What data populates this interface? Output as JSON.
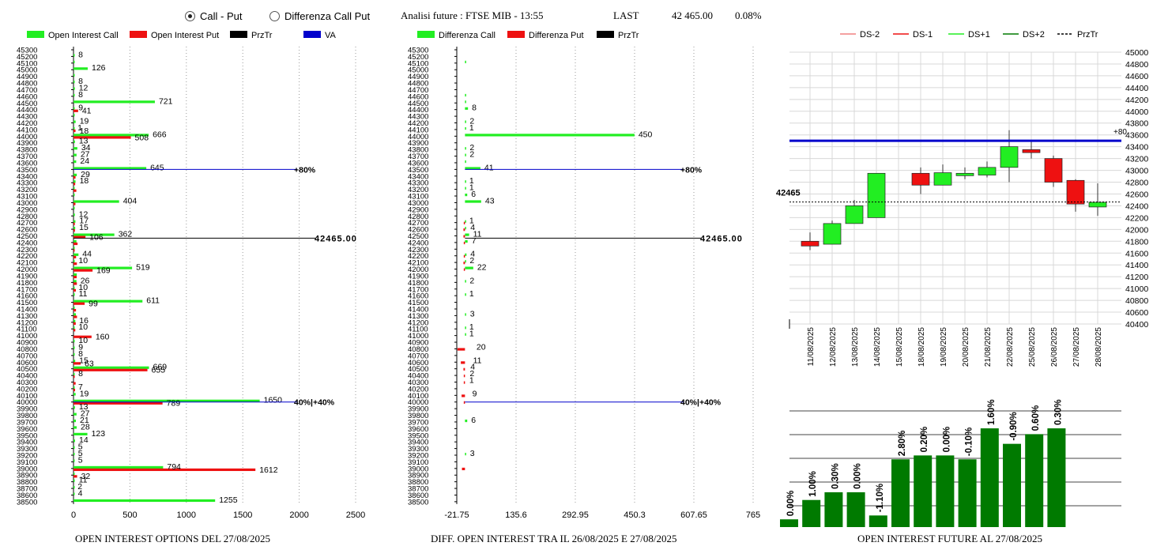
{
  "header": {
    "radio_call_put": "Call - Put",
    "radio_diff": "Differenza Call Put",
    "analysis_label": "Analisi future : FTSE MIB - 13:55",
    "last_label": "LAST",
    "last_value": "42 465.00",
    "last_change": "0.08%"
  },
  "captions": {
    "left": "OPEN INTEREST OPTIONS DEL 27/08/2025",
    "middle": "DIFF. OPEN INTEREST TRA IL 26/08/2025 E 27/08/2025",
    "right": "OPEN INTEREST FUTURE AL 27/08/2025"
  },
  "colors": {
    "green": "#22ee22",
    "red": "#ee1111",
    "blue": "#0000cc",
    "dark_green": "#007a00",
    "light_red": "#f08080"
  },
  "chart_data": [
    {
      "type": "bar",
      "orientation": "horizontal",
      "legend": [
        "Open Interest Call",
        "Open Interest Put",
        "PrzTr",
        "VA"
      ],
      "strikes": [
        45300,
        45200,
        45100,
        45000,
        44900,
        44800,
        44700,
        44600,
        44500,
        44400,
        44300,
        44200,
        44100,
        44000,
        43900,
        43800,
        43700,
        43600,
        43500,
        43400,
        43300,
        43200,
        43100,
        43000,
        42900,
        42800,
        42700,
        42600,
        42500,
        42400,
        42300,
        42200,
        42100,
        42000,
        41900,
        41800,
        41700,
        41600,
        41500,
        41400,
        41300,
        41200,
        41100,
        41000,
        40900,
        40800,
        40700,
        40600,
        40500,
        40400,
        40300,
        40200,
        40100,
        40000,
        39900,
        39800,
        39700,
        39600,
        39500,
        39400,
        39300,
        39200,
        39100,
        39000,
        38900,
        38800,
        38700,
        38600,
        38500
      ],
      "call": [
        0,
        8,
        1,
        126,
        1,
        8,
        12,
        8,
        721,
        9,
        1,
        19,
        1,
        666,
        13,
        34,
        27,
        24,
        645,
        29,
        18,
        5,
        10,
        404,
        3,
        12,
        17,
        15,
        362,
        26,
        5,
        44,
        10,
        519,
        29,
        26,
        10,
        11,
        611,
        2,
        21,
        16,
        10,
        0,
        10,
        9,
        8,
        15,
        669,
        8,
        0,
        7,
        19,
        1650,
        13,
        27,
        21,
        28,
        123,
        14,
        5,
        5,
        5,
        794,
        2,
        11,
        2,
        4,
        1255
      ],
      "put": [
        0,
        0,
        0,
        0,
        0,
        0,
        0,
        0,
        0,
        41,
        0,
        0,
        18,
        508,
        0,
        0,
        0,
        0,
        0,
        18,
        15,
        25,
        0,
        17,
        0,
        0,
        12,
        13,
        106,
        36,
        4,
        23,
        30,
        169,
        28,
        30,
        21,
        0,
        99,
        22,
        31,
        20,
        16,
        160,
        0,
        0,
        0,
        63,
        655,
        9,
        19,
        14,
        0,
        789,
        0,
        0,
        0,
        0,
        0,
        0,
        0,
        0,
        0,
        1612,
        32,
        0,
        0,
        0,
        0
      ],
      "call_labels": {
        "45200": "8",
        "45000": "126",
        "44800": "8",
        "44700": "12",
        "44600": "8",
        "44500": "721",
        "44400": "9",
        "44200": "19",
        "44100": "1",
        "44000": "666",
        "43900": "13",
        "43800": "34",
        "43700": "27",
        "43600": "24",
        "43500": "645",
        "43400": "29",
        "43300": "18",
        "43000": "404",
        "42800": "12",
        "42700": "17",
        "42600": "15",
        "42500": "362",
        "42200": "44",
        "42100": "10",
        "42000": "519",
        "41800": "26",
        "41700": "10",
        "41600": "11",
        "41500": "611",
        "41200": "16",
        "41100": "10",
        "40900": "10",
        "40800": "9",
        "40700": "8",
        "40600": "15",
        "40500": "669",
        "40400": "8",
        "40200": "7",
        "40100": "19",
        "40000": "1650",
        "39900": "13",
        "39800": "27",
        "39700": "21",
        "39600": "28",
        "39500": "123",
        "39400": "14",
        "39300": "5",
        "39200": "5",
        "39100": "5",
        "39000": "794",
        "38800": "11",
        "38700": "2",
        "38600": "4",
        "38500": "1255"
      },
      "put_labels": {
        "44400": "41",
        "44100": "18",
        "44000": "508",
        "42500": "106",
        "42000": "169",
        "41500": "99",
        "41000": "160",
        "40600": "63",
        "40500": "655",
        "40000": "789",
        "39000": "1612",
        "38900": "32"
      },
      "xticks": [
        "0",
        "500",
        "1000",
        "1500",
        "2000",
        "2500"
      ],
      "xlim": [
        0,
        2500
      ],
      "prztr": 42465,
      "prztr_label": "42465.00",
      "va_lines": [
        {
          "strike": 43500,
          "label": "+80%"
        },
        {
          "strike": 40000,
          "label": "40%|+40%"
        }
      ]
    },
    {
      "type": "bar",
      "orientation": "horizontal",
      "legend": [
        "Differenza Call",
        "Differenza Put",
        "PrzTr"
      ],
      "strikes": [
        45300,
        45200,
        45100,
        45000,
        44900,
        44800,
        44700,
        44600,
        44500,
        44400,
        44300,
        44200,
        44100,
        44000,
        43900,
        43800,
        43700,
        43600,
        43500,
        43400,
        43300,
        43200,
        43100,
        43000,
        42900,
        42800,
        42700,
        42600,
        42500,
        42400,
        42300,
        42200,
        42100,
        42000,
        41900,
        41800,
        41700,
        41600,
        41500,
        41400,
        41300,
        41200,
        41100,
        41000,
        40900,
        40800,
        40700,
        40600,
        40500,
        40400,
        40300,
        40200,
        40100,
        40000,
        39900,
        39800,
        39700,
        39600,
        39500,
        39400,
        39300,
        39200,
        39100,
        39000,
        38900,
        38800,
        38700,
        38600,
        38500
      ],
      "call_diff": [
        0,
        0,
        1,
        0,
        0,
        0,
        0,
        1,
        1,
        8,
        0,
        2,
        1,
        450,
        0,
        2,
        2,
        1,
        41,
        0,
        1,
        1,
        6,
        43,
        0,
        0,
        1,
        1,
        11,
        7,
        0,
        4,
        2,
        22,
        0,
        2,
        0,
        1,
        0,
        0,
        3,
        0,
        1,
        1,
        0,
        0,
        0,
        0,
        0,
        0,
        0,
        0,
        0,
        0,
        0,
        0,
        6,
        0,
        0,
        0,
        0,
        3,
        0,
        0,
        0,
        0,
        0,
        0,
        0
      ],
      "put_diff": [
        0,
        0,
        0,
        0,
        0,
        0,
        0,
        0,
        0,
        0,
        0,
        0,
        0,
        0,
        0,
        0,
        0,
        0,
        0,
        0,
        0,
        0,
        0,
        0,
        0,
        0,
        1,
        4,
        4,
        1,
        0,
        1,
        4,
        2,
        0,
        0,
        0,
        0,
        0,
        0,
        0,
        0,
        0,
        0,
        0,
        20,
        0,
        11,
        4,
        2,
        1,
        0,
        9,
        1,
        0,
        0,
        0,
        0,
        0,
        0,
        0,
        0,
        0,
        8,
        0,
        0,
        0,
        0,
        0
      ],
      "labels": {
        "44400": "8",
        "44200": "2",
        "44100": "1",
        "44000": "450",
        "43800": "2",
        "43700": "2",
        "43500": "41",
        "43300": "1",
        "43200": "1",
        "43100": "6",
        "43000": "43",
        "42700": "1",
        "42600": "4",
        "42500": "11",
        "42400": "7",
        "42200": "4",
        "42100": "2",
        "42000": "22",
        "41800": "2",
        "41600": "1",
        "41300": "3",
        "41100": "1",
        "41000": "1",
        "40800": "20",
        "40600": "11",
        "40500": "4",
        "40400": "2",
        "40300": "1",
        "40100": "9",
        "39700": "6",
        "39200": "3"
      },
      "xticks": [
        "-21.75",
        "135.6",
        "292.95",
        "450.3",
        "607.65",
        "765"
      ],
      "xlim": [
        -21.75,
        765
      ],
      "prztr": 42465,
      "prztr_label": "42465.00",
      "va_lines": [
        {
          "strike": 43500,
          "label": "+80%"
        },
        {
          "strike": 40000,
          "label": "40%|+40%"
        }
      ]
    },
    {
      "type": "candlestick",
      "legend": [
        "DS-2",
        "DS-1",
        "DS+1",
        "DS+2",
        "PrzTr"
      ],
      "dates": [
        "11/08/2025",
        "12/08/2025",
        "13/08/2025",
        "14/08/2025",
        "15/08/2025",
        "18/08/2025",
        "19/08/2025",
        "20/08/2025",
        "21/08/2025",
        "22/08/2025",
        "25/08/2025",
        "26/08/2025",
        "27/08/2025",
        "28/08/2025"
      ],
      "ohlc": [
        [
          41800,
          41950,
          41650,
          41720
        ],
        [
          41750,
          42150,
          41750,
          42100
        ],
        [
          42100,
          42500,
          42100,
          42400
        ],
        [
          42200,
          42950,
          42200,
          42950
        ],
        null,
        [
          42950,
          43050,
          42600,
          42750
        ],
        [
          42750,
          43100,
          42750,
          42960
        ],
        [
          42920,
          43050,
          42850,
          42950
        ],
        [
          42920,
          43150,
          42880,
          43050
        ],
        [
          43050,
          43680,
          42800,
          43400
        ],
        [
          43350,
          43500,
          43200,
          43300
        ],
        [
          43200,
          43250,
          42720,
          42800
        ],
        [
          42830,
          42850,
          42300,
          42430
        ],
        [
          42380,
          42780,
          42230,
          42460
        ]
      ],
      "candle_colors": [
        "red",
        "green",
        "green",
        "green",
        null,
        "red",
        "green",
        "green",
        "green",
        "green",
        "red",
        "red",
        "red",
        "green"
      ],
      "ylim": [
        40400,
        45000
      ],
      "yticks": [
        "45000",
        "44800",
        "44600",
        "44400",
        "44200",
        "44000",
        "43800",
        "43600",
        "43400",
        "43200",
        "43000",
        "42800",
        "42600",
        "42400",
        "42200",
        "42000",
        "41800",
        "41600",
        "41400",
        "41200",
        "41000",
        "40800",
        "40600",
        "40400"
      ],
      "blue_line": 43500,
      "blue_label": "+80",
      "prztr": 42465,
      "prztr_label": "42465"
    },
    {
      "type": "bar",
      "values": [
        0.0,
        1.0,
        0.3,
        0.0,
        -1.1,
        2.8,
        0.2,
        0.0,
        -0.1,
        1.6,
        -0.9,
        0.6,
        0.3
      ],
      "value_labels": [
        "0.00%",
        "1.00%",
        "0.30%",
        "0.00%",
        "-1.10%",
        "2.80%",
        "0.20%",
        "0.00%",
        "-0.10%",
        "1.60%",
        "-0.90%",
        "0.60%",
        "0.30%"
      ],
      "heights": [
        4,
        14,
        18,
        18,
        6,
        35,
        37,
        37,
        35,
        51,
        43,
        48,
        51
      ],
      "ylim": [
        0,
        60
      ]
    }
  ]
}
